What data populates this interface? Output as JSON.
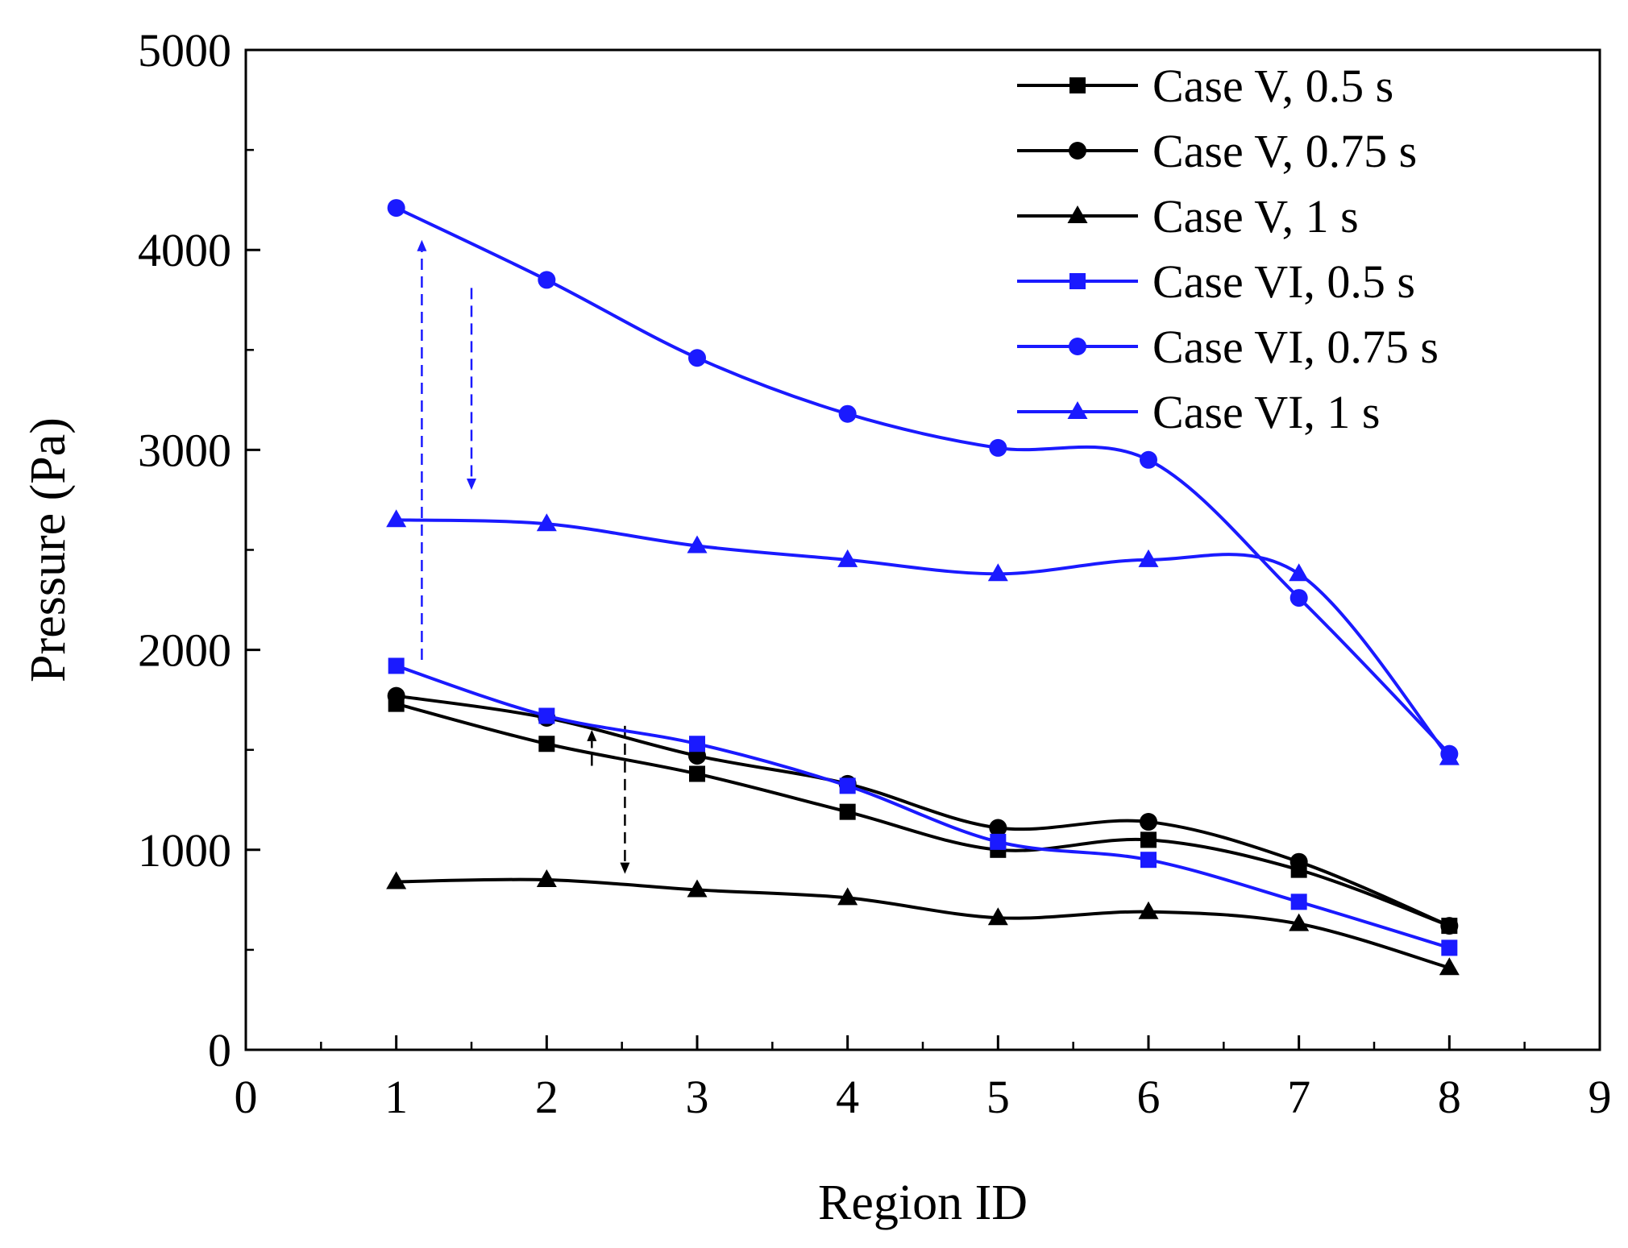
{
  "chart_data": {
    "type": "line",
    "title": "",
    "xlabel": "Region ID",
    "ylabel": "Pressure (Pa)",
    "xlim": [
      0,
      9
    ],
    "ylim": [
      0,
      5000
    ],
    "xticks": [
      0,
      1,
      2,
      3,
      4,
      5,
      6,
      7,
      8,
      9
    ],
    "yticks": [
      0,
      1000,
      2000,
      3000,
      4000,
      5000
    ],
    "x": [
      1,
      2,
      3,
      4,
      5,
      6,
      7,
      8
    ],
    "grid": false,
    "legend_position": "top-right",
    "series": [
      {
        "name": "Case V, 0.5 s",
        "color": "#000000",
        "marker": "square",
        "values": [
          1730,
          1530,
          1380,
          1190,
          1000,
          1050,
          900,
          620
        ]
      },
      {
        "name": "Case V, 0.75 s",
        "color": "#000000",
        "marker": "circle",
        "values": [
          1770,
          1660,
          1470,
          1330,
          1110,
          1140,
          940,
          620
        ]
      },
      {
        "name": "Case V, 1 s",
        "color": "#000000",
        "marker": "triangle",
        "values": [
          840,
          850,
          800,
          760,
          660,
          690,
          630,
          410
        ]
      },
      {
        "name": "Case VI, 0.5 s",
        "color": "#1a1aff",
        "marker": "square",
        "values": [
          1920,
          1670,
          1530,
          1320,
          1040,
          950,
          740,
          510
        ]
      },
      {
        "name": "Case VI, 0.75 s",
        "color": "#1a1aff",
        "marker": "circle",
        "values": [
          4210,
          3850,
          3460,
          3180,
          3010,
          2950,
          2260,
          1480
        ]
      },
      {
        "name": "Case VI, 1 s",
        "color": "#1a1aff",
        "marker": "triangle",
        "values": [
          2650,
          2630,
          2520,
          2450,
          2380,
          2450,
          2380,
          1460
        ]
      }
    ],
    "annotations": [
      {
        "type": "dashed-arrow",
        "color": "#1a1aff",
        "x": 1.17,
        "from": 1950,
        "to": 4050,
        "direction": "up"
      },
      {
        "type": "dashed-arrow",
        "color": "#1a1aff",
        "x": 1.5,
        "from": 3810,
        "to": 2800,
        "direction": "down"
      },
      {
        "type": "dashed-arrow",
        "color": "#000000",
        "x": 2.3,
        "from": 1420,
        "to": 1600,
        "direction": "up"
      },
      {
        "type": "dashed-arrow",
        "color": "#000000",
        "x": 2.52,
        "from": 1620,
        "to": 880,
        "direction": "down"
      }
    ]
  }
}
